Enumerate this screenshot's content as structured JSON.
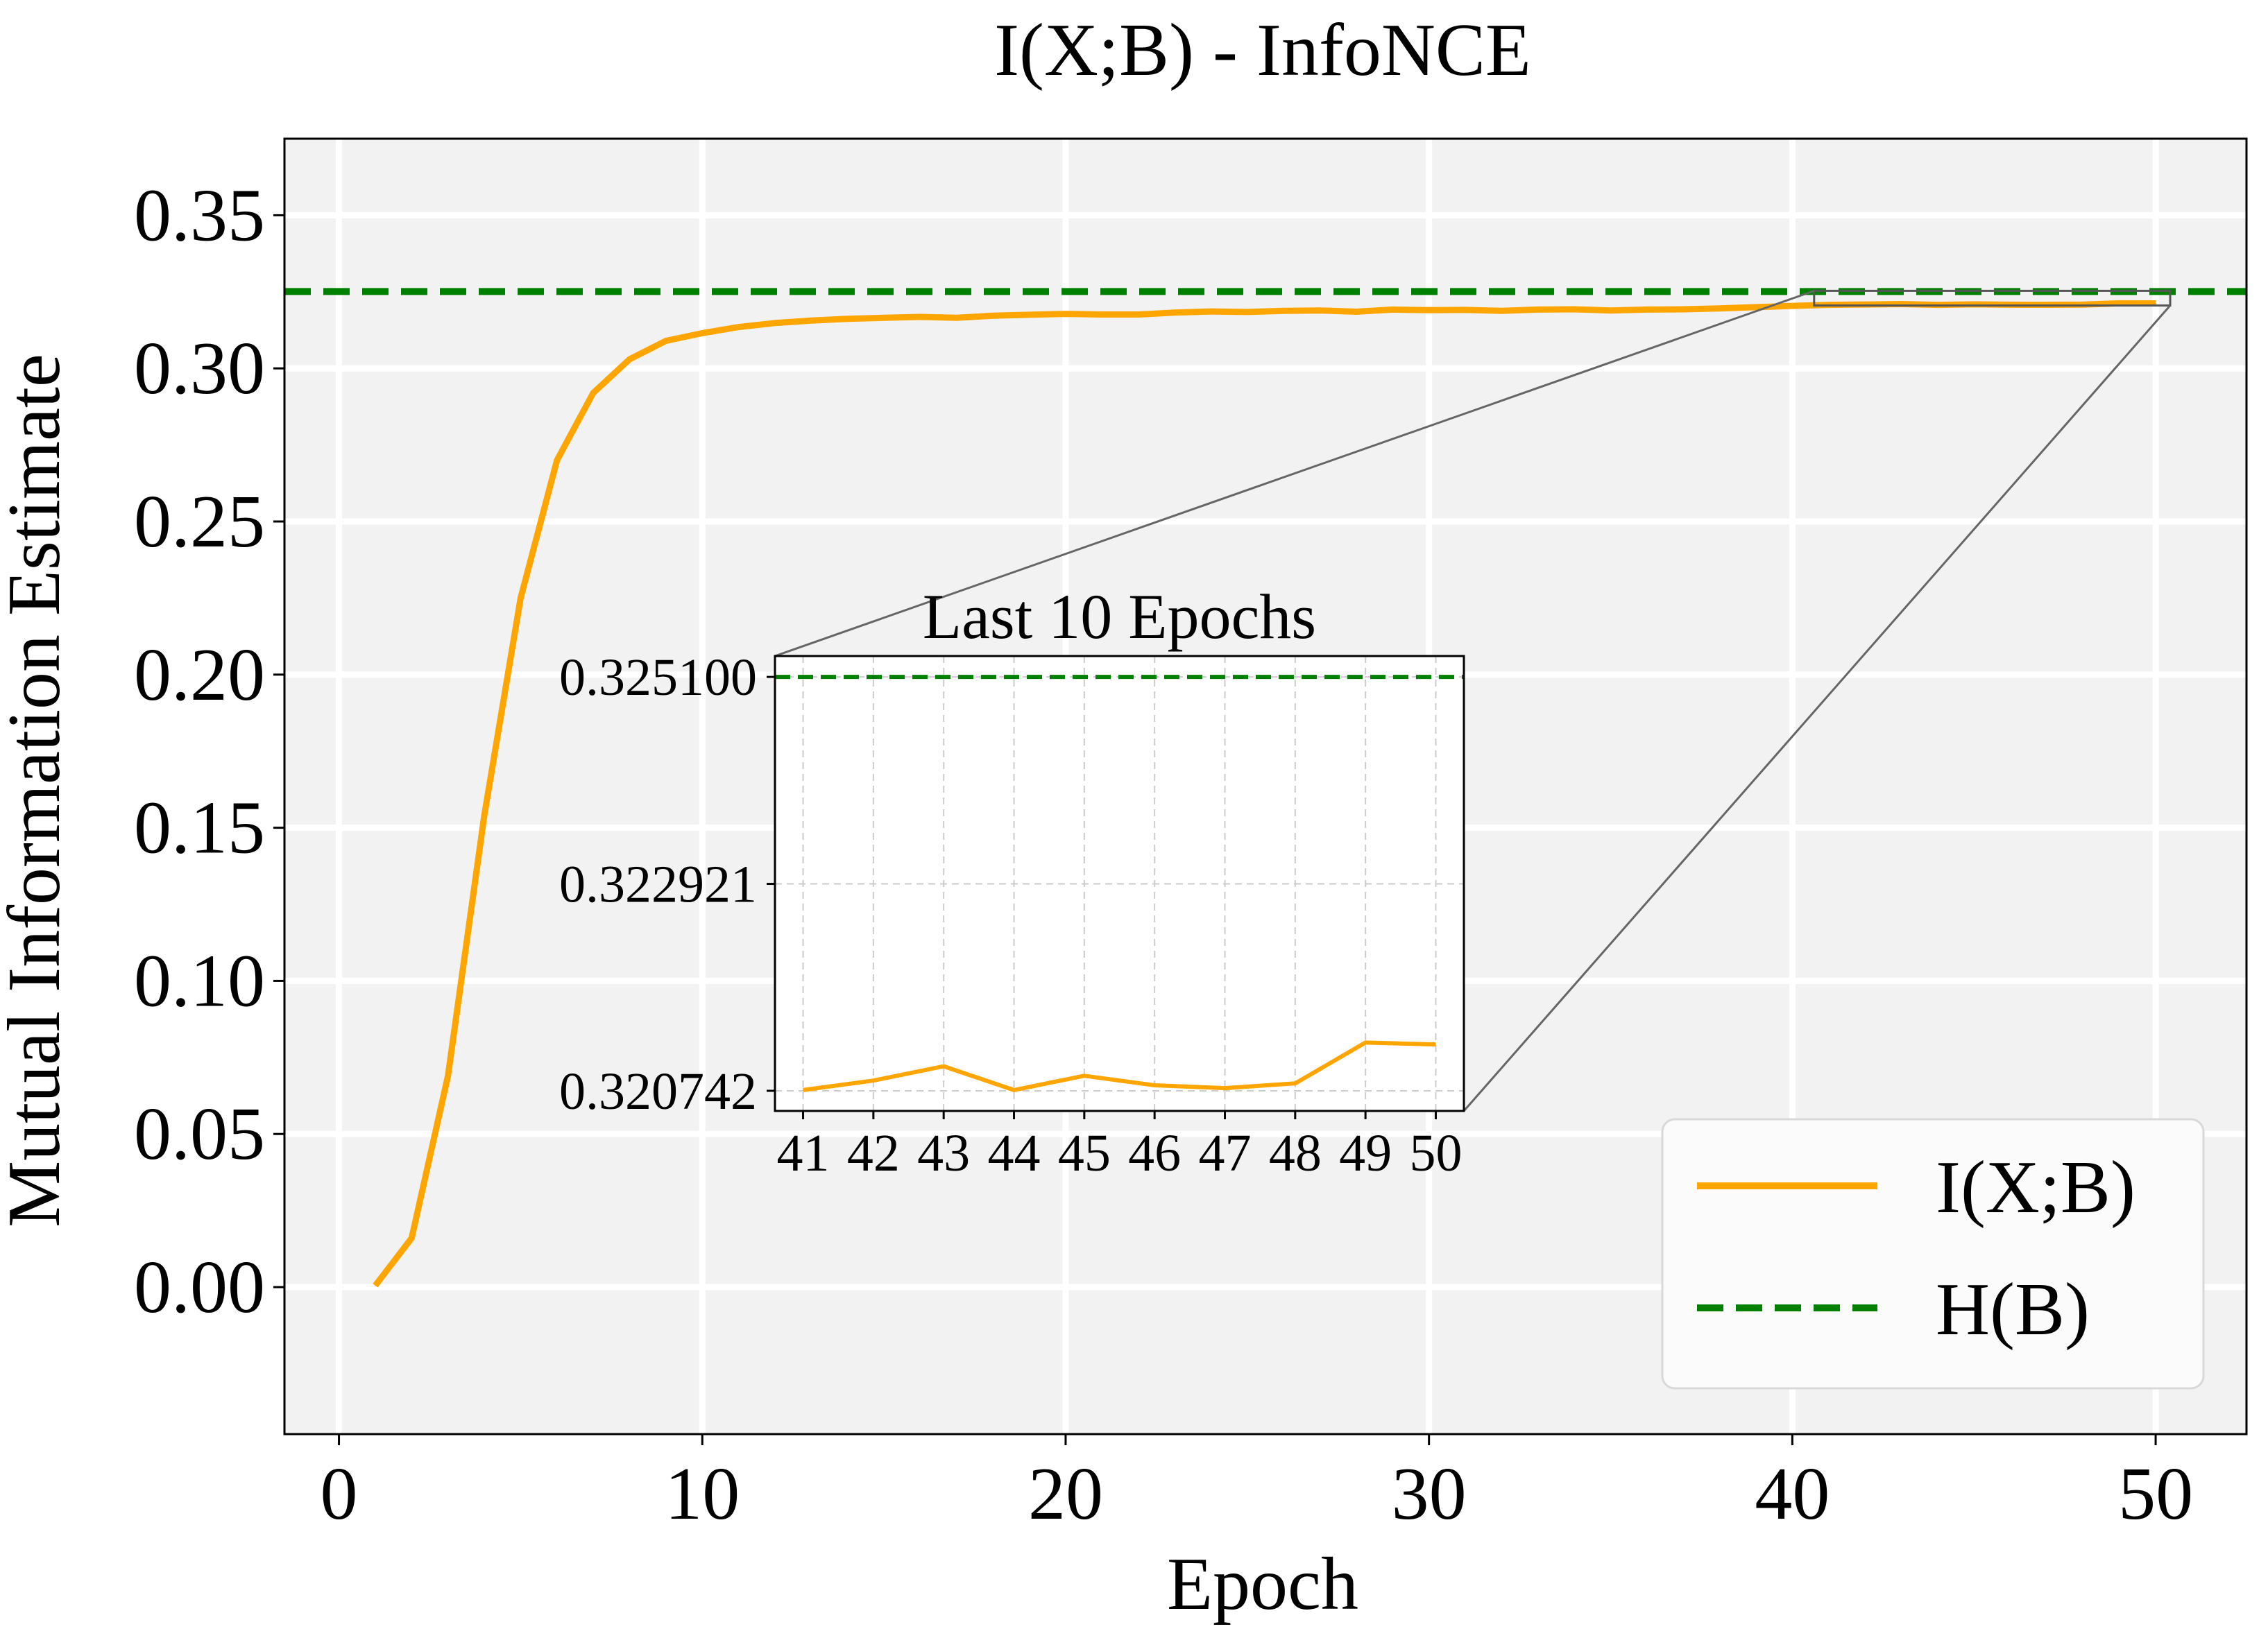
{
  "chart_data": {
    "type": "line",
    "title": "I(X;B) - InfoNCE",
    "xlabel": "Epoch",
    "ylabel": "Mutual Information Estimate",
    "xlim": [
      -1.5,
      52.5
    ],
    "ylim": [
      -0.048,
      0.375
    ],
    "xticks": [
      0,
      10,
      20,
      30,
      40,
      50
    ],
    "xtick_labels": [
      "0",
      "10",
      "20",
      "30",
      "40",
      "50"
    ],
    "yticks": [
      0.0,
      0.05,
      0.1,
      0.15,
      0.2,
      0.25,
      0.3,
      0.35
    ],
    "ytick_labels": [
      "0.00",
      "0.05",
      "0.10",
      "0.15",
      "0.20",
      "0.25",
      "0.30",
      "0.35"
    ],
    "grid": true,
    "background": "#f2f2f2",
    "legend_position": "lower-right",
    "series": [
      {
        "name": "I(X;B)",
        "style": "solid",
        "color": "#ffa500",
        "x": [
          1,
          2,
          3,
          4,
          5,
          6,
          7,
          8,
          9,
          10,
          11,
          12,
          13,
          14,
          15,
          16,
          17,
          18,
          19,
          20,
          21,
          22,
          23,
          24,
          25,
          26,
          27,
          28,
          29,
          30,
          31,
          32,
          33,
          34,
          35,
          36,
          37,
          38,
          39,
          40,
          41,
          42,
          43,
          44,
          45,
          46,
          47,
          48,
          49,
          50
        ],
        "y": [
          0.0005,
          0.016,
          0.069,
          0.154,
          0.225,
          0.27,
          0.292,
          0.303,
          0.309,
          0.3115,
          0.3135,
          0.3148,
          0.3156,
          0.3162,
          0.3165,
          0.3168,
          0.3165,
          0.3172,
          0.3175,
          0.3178,
          0.3176,
          0.3176,
          0.3182,
          0.3186,
          0.3184,
          0.3188,
          0.3189,
          0.3185,
          0.3192,
          0.319,
          0.3191,
          0.3188,
          0.3192,
          0.3193,
          0.3189,
          0.3192,
          0.3193,
          0.3196,
          0.32,
          0.3204,
          0.32075,
          0.32085,
          0.321,
          0.32075,
          0.3209,
          0.3208,
          0.32077,
          0.32082,
          0.32125,
          0.32123
        ]
      },
      {
        "name": "H(B)",
        "style": "dashed",
        "color": "#008000",
        "y": 0.3251
      }
    ],
    "inset": {
      "title": "Last 10 Epochs",
      "x": [
        41,
        42,
        43,
        44,
        45,
        46,
        47,
        48,
        49,
        50
      ],
      "xtick_labels": [
        "41",
        "42",
        "43",
        "44",
        "45",
        "46",
        "47",
        "48",
        "49",
        "50"
      ],
      "y": [
        0.32075,
        0.32085,
        0.321,
        0.32075,
        0.3209,
        0.3208,
        0.32077,
        0.32082,
        0.32125,
        0.32123
      ],
      "yticks": [
        0.320742,
        0.322921,
        0.3251
      ],
      "ytick_labels": [
        "0.320742",
        "0.322921",
        "0.325100"
      ],
      "xlim": [
        40.6,
        50.4
      ],
      "ylim": [
        0.32053,
        0.32532
      ],
      "reference_value": 0.3251,
      "grid": "dashed"
    }
  }
}
